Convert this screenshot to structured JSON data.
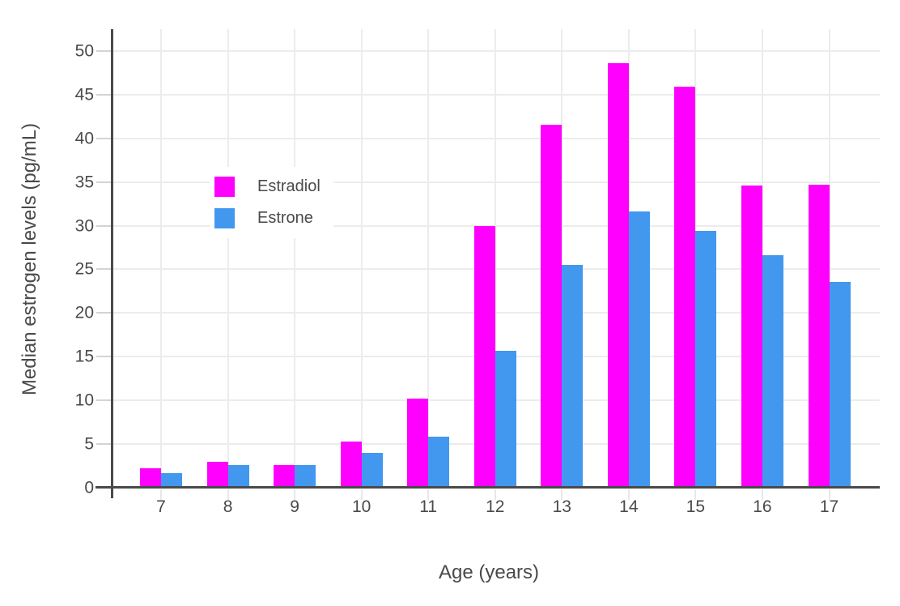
{
  "chart_data": {
    "type": "bar",
    "title": "",
    "xlabel": "Age (years)",
    "ylabel": "Median estrogen levels (pg/mL)",
    "categories": [
      "7",
      "8",
      "9",
      "10",
      "11",
      "12",
      "13",
      "14",
      "15",
      "16",
      "17"
    ],
    "series": [
      {
        "name": "Estradiol",
        "color": "#ff00ff",
        "values": [
          2.2,
          3.0,
          2.6,
          5.3,
          10.2,
          30.0,
          41.6,
          48.6,
          45.9,
          34.6,
          34.7
        ]
      },
      {
        "name": "Estrone",
        "color": "#4298ee",
        "values": [
          1.7,
          2.6,
          2.6,
          4.0,
          5.8,
          15.7,
          25.5,
          31.6,
          29.4,
          26.6,
          23.6
        ]
      }
    ],
    "ylim": [
      0,
      52.5
    ],
    "yticks": [
      0,
      5,
      10,
      15,
      20,
      25,
      30,
      35,
      40,
      45,
      50
    ],
    "grid": true,
    "legend_position": "inside-top-left",
    "style": {
      "axis_color": "#4a4a4a",
      "grid_color": "#ececec",
      "text_color": "#4a4a4a",
      "background": "#ffffff"
    }
  }
}
